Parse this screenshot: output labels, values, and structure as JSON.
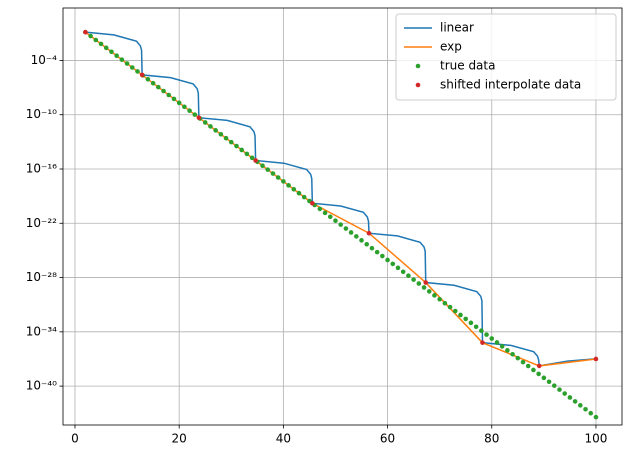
{
  "chart_data": {
    "type": "line",
    "log_y": true,
    "grid": true,
    "legend": "upper right",
    "xlim": [
      -2.3,
      105
    ],
    "xticks": [
      0,
      20,
      40,
      60,
      80,
      100
    ],
    "ylim": [
      5e-45,
      63
    ],
    "yticks": [
      {
        "value": 1e-40,
        "label": "10⁻⁴⁰"
      },
      {
        "value": 1e-34,
        "label": "10⁻³⁴"
      },
      {
        "value": 1e-28,
        "label": "10⁻²⁸"
      },
      {
        "value": 1e-22,
        "label": "10⁻²²"
      },
      {
        "value": 1e-16,
        "label": "10⁻¹⁶"
      },
      {
        "value": 1e-10,
        "label": "10⁻¹⁰"
      },
      {
        "value": 0.0001,
        "label": "10⁻⁴"
      }
    ],
    "series": [
      {
        "name": "linear",
        "color": "#1f77b4",
        "mode": "line",
        "x": [
          2,
          7.44,
          11.8,
          12.56,
          12.78,
          12.89,
          18.33,
          22.69,
          23.45,
          23.67,
          23.78,
          29.22,
          33.58,
          34.34,
          34.56,
          34.67,
          40.11,
          44.47,
          45.23,
          45.45,
          45.56,
          51.0,
          55.36,
          56.12,
          56.34,
          56.44,
          61.88,
          66.24,
          67.0,
          67.22,
          67.33,
          72.77,
          77.13,
          77.89,
          78.11,
          78.22,
          83.66,
          88.02,
          88.78,
          89.0,
          89.11,
          94.55,
          98.91,
          99.67,
          99.89,
          100
        ],
        "values": [
          0.135,
          0.0675,
          0.0135,
          0.00405,
          0.00135,
          2.52e-06,
          1.26e-06,
          2.52e-07,
          7.56e-08,
          2.52e-08,
          4.71e-11,
          2.355e-11,
          4.71e-12,
          1.413e-12,
          4.71e-13,
          8.77e-16,
          4.385e-16,
          8.77e-17,
          2.631e-17,
          8.77e-18,
          1.64e-20,
          8.2e-21,
          1.64e-21,
          4.92e-22,
          1.64e-22,
          8e-24,
          4e-24,
          8e-25,
          2.4e-25,
          8e-26,
          2.8e-29,
          1.4e-29,
          2.8e-30,
          8.4e-31,
          2.8e-31,
          6.3e-36,
          3.15e-36,
          6.45e-37,
          2.06e-37,
          7.98e-38,
          1.7e-38,
          5.85e-38,
          9.17e-38,
          9.75e-38,
          9.92e-38,
          1e-37
        ]
      },
      {
        "name": "exp",
        "color": "#ff7f0e",
        "mode": "line",
        "x": [
          2,
          12.89,
          23.78,
          34.67,
          45.56,
          56.44,
          67.33,
          78.22,
          89.11,
          100
        ],
        "values": [
          0.135,
          2.52e-06,
          4.71e-11,
          8.77e-16,
          1.64e-20,
          8e-24,
          2.8e-29,
          6.3e-36,
          1.7e-38,
          1e-37
        ]
      },
      {
        "name": "true data",
        "color": "#2ca02c",
        "mode": "markers",
        "x": [
          2,
          3,
          4,
          5,
          6,
          7,
          8,
          9,
          10,
          11,
          12,
          13,
          14,
          15,
          16,
          17,
          18,
          19,
          20,
          21,
          22,
          23,
          24,
          25,
          26,
          27,
          28,
          29,
          30,
          31,
          32,
          33,
          34,
          35,
          36,
          37,
          38,
          39,
          40,
          41,
          42,
          43,
          44,
          45,
          46,
          47,
          48,
          49,
          50,
          51,
          52,
          53,
          54,
          55,
          56,
          57,
          58,
          59,
          60,
          61,
          62,
          63,
          64,
          65,
          66,
          67,
          68,
          69,
          70,
          71,
          72,
          73,
          74,
          75,
          76,
          77,
          78,
          79,
          80,
          81,
          82,
          83,
          84,
          85,
          86,
          87,
          88,
          89,
          90,
          91,
          92,
          93,
          94,
          95,
          96,
          97,
          98,
          99,
          100
        ],
        "values": [
          0.135,
          0.0498,
          0.0183,
          0.00674,
          0.00248,
          0.000912,
          0.000335,
          0.000123,
          4.54e-05,
          1.67e-05,
          6.14e-06,
          2.26e-06,
          8.32e-07,
          3.06e-07,
          1.13e-07,
          4.14e-08,
          1.52e-08,
          5.6e-09,
          2.06e-09,
          7.58e-10,
          2.79e-10,
          1.03e-10,
          3.78e-11,
          1.39e-11,
          5.11e-12,
          1.88e-12,
          6.91e-13,
          2.54e-13,
          9.36e-14,
          3.44e-14,
          1.27e-14,
          4.66e-15,
          1.71e-15,
          6.31e-16,
          2.32e-16,
          8.53e-17,
          3.14e-17,
          1.15e-17,
          4.25e-18,
          1.56e-18,
          5.75e-19,
          2.12e-19,
          7.78e-20,
          2.86e-20,
          1.05e-20,
          3.87e-21,
          1.43e-21,
          5.24e-22,
          1.93e-22,
          7.1e-23,
          2.61e-23,
          9.6e-24,
          3.53e-24,
          1.3e-24,
          4.78e-25,
          1.76e-25,
          6.47e-26,
          2.38e-26,
          8.76e-27,
          3.22e-27,
          1.19e-27,
          4.36e-28,
          1.6e-28,
          5.9e-29,
          2.17e-29,
          7.99e-30,
          2.94e-30,
          1.08e-30,
          3.98e-31,
          1.46e-31,
          5.38e-32,
          1.98e-32,
          7.28e-33,
          2.68e-33,
          9.85e-34,
          3.62e-34,
          1.33e-34,
          4.91e-35,
          1.8e-35,
          6.64e-36,
          2.44e-36,
          8.99e-37,
          3.31e-37,
          1.22e-37,
          4.47e-38,
          1.65e-38,
          6.06e-39,
          2.23e-39,
          8.19e-40,
          3.01e-40,
          1.11e-40,
          4.08e-41,
          1.5e-41,
          5.52e-42,
          2.03e-42,
          7.47e-43,
          2.75e-43,
          1.01e-43,
          3.72e-44
        ]
      },
      {
        "name": "shifted interpolate data",
        "color": "#d62728",
        "mode": "markers",
        "x": [
          2,
          12.89,
          23.78,
          34.67,
          45.56,
          56.44,
          67.33,
          78.22,
          89.11,
          100
        ],
        "values": [
          0.135,
          2.52e-06,
          4.71e-11,
          8.77e-16,
          1.64e-20,
          8e-24,
          2.8e-29,
          6.3e-36,
          1.7e-38,
          1e-37
        ]
      }
    ]
  }
}
